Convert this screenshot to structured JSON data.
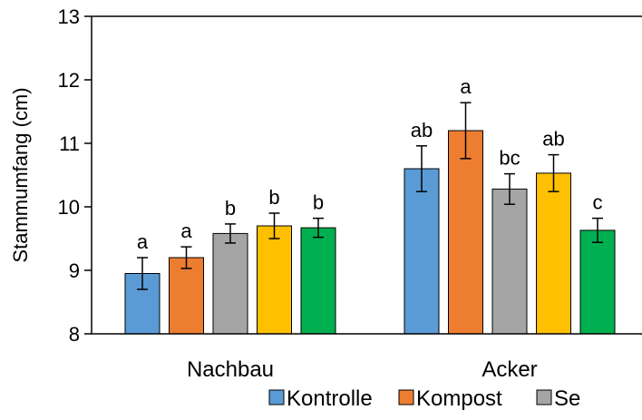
{
  "chart_data": {
    "type": "bar",
    "title": "",
    "xlabel": "",
    "ylabel": "Stammumfang (cm)",
    "ylim": [
      8,
      13
    ],
    "yticks": [
      "8",
      "9",
      "10",
      "11",
      "12",
      "13"
    ],
    "grid": false,
    "legend_position": "bottom",
    "categories": [
      "Nachbau",
      "Acker"
    ],
    "series": [
      {
        "name": "Kontrolle",
        "color": "#5B9BD5",
        "values": [
          8.95,
          10.6
        ],
        "errors": [
          0.25,
          0.36
        ],
        "labels": [
          "a",
          "ab"
        ]
      },
      {
        "name": "Kompost",
        "color": "#ED7D31",
        "values": [
          9.2,
          11.2
        ],
        "errors": [
          0.17,
          0.44
        ],
        "labels": [
          "a",
          "a"
        ]
      },
      {
        "name": "Se",
        "color": "#A5A5A5",
        "values": [
          9.58,
          10.28
        ],
        "errors": [
          0.15,
          0.24
        ],
        "labels": [
          "b",
          "bc"
        ]
      },
      {
        "name": "",
        "color": "#FFC000",
        "values": [
          9.7,
          10.53
        ],
        "errors": [
          0.2,
          0.29
        ],
        "labels": [
          "b",
          "ab"
        ]
      },
      {
        "name": "",
        "color": "#00B050",
        "values": [
          9.67,
          9.63
        ],
        "errors": [
          0.15,
          0.19
        ],
        "labels": [
          "b",
          "c"
        ]
      }
    ]
  }
}
